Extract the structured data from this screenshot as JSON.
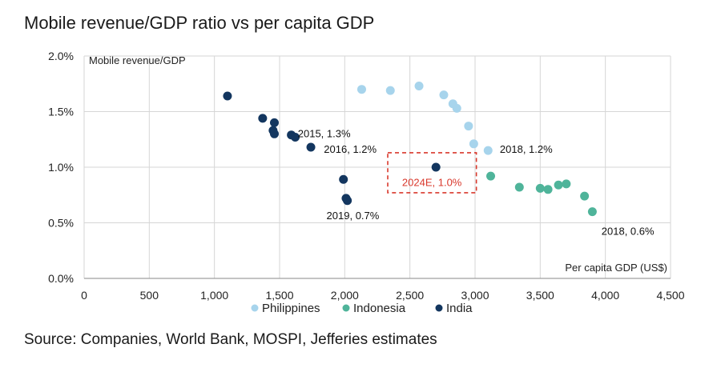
{
  "title": "Mobile revenue/GDP ratio vs per capita GDP",
  "source": "Source: Companies, World Bank, MOSPI, Jefferies estimates",
  "chart_data": {
    "type": "scatter",
    "title": "Mobile revenue/GDP ratio vs per capita GDP",
    "xlabel": "Per capita GDP (US$)",
    "ylabel": "Mobile revenue/GDP",
    "xlim": [
      0,
      4500
    ],
    "ylim": [
      0,
      2.0
    ],
    "x_ticks": [
      "0",
      "500",
      "1,000",
      "1,500",
      "2,000",
      "2,500",
      "3,000",
      "3,500",
      "4,000",
      "4,500"
    ],
    "y_ticks": [
      "0.0%",
      "0.5%",
      "1.0%",
      "1.5%",
      "2.0%"
    ],
    "grid": true,
    "legend_position": "bottom",
    "series": [
      {
        "name": "Philippines",
        "color": "#a7d4ec",
        "points": [
          {
            "x": 2130,
            "y": 1.7
          },
          {
            "x": 2350,
            "y": 1.69
          },
          {
            "x": 2570,
            "y": 1.73
          },
          {
            "x": 2760,
            "y": 1.65
          },
          {
            "x": 2830,
            "y": 1.57
          },
          {
            "x": 2860,
            "y": 1.53
          },
          {
            "x": 2950,
            "y": 1.37
          },
          {
            "x": 2990,
            "y": 1.21
          },
          {
            "x": 3100,
            "y": 1.15
          }
        ]
      },
      {
        "name": "Indonesia",
        "color": "#4fb49a",
        "points": [
          {
            "x": 3120,
            "y": 0.92
          },
          {
            "x": 3340,
            "y": 0.82
          },
          {
            "x": 3500,
            "y": 0.81
          },
          {
            "x": 3560,
            "y": 0.8
          },
          {
            "x": 3640,
            "y": 0.84
          },
          {
            "x": 3700,
            "y": 0.85
          },
          {
            "x": 3840,
            "y": 0.74
          },
          {
            "x": 3900,
            "y": 0.6
          }
        ]
      },
      {
        "name": "India",
        "color": "#13365f",
        "points": [
          {
            "x": 1100,
            "y": 1.64
          },
          {
            "x": 1370,
            "y": 1.44
          },
          {
            "x": 1460,
            "y": 1.4
          },
          {
            "x": 1450,
            "y": 1.33
          },
          {
            "x": 1460,
            "y": 1.3
          },
          {
            "x": 1590,
            "y": 1.29
          },
          {
            "x": 1620,
            "y": 1.27
          },
          {
            "x": 1740,
            "y": 1.18
          },
          {
            "x": 1990,
            "y": 0.89
          },
          {
            "x": 2010,
            "y": 0.72
          },
          {
            "x": 2020,
            "y": 0.7
          },
          {
            "x": 2700,
            "y": 1.0
          }
        ]
      }
    ],
    "annotations": [
      {
        "text": "2015, 1.3%",
        "x": 1640,
        "y": 1.3,
        "style": "normal"
      },
      {
        "text": "2016, 1.2%",
        "x": 1840,
        "y": 1.16,
        "style": "normal"
      },
      {
        "text": "2019, 0.7%",
        "x": 1860,
        "y": 0.56,
        "style": "normal"
      },
      {
        "text": "2018, 1.2%",
        "x": 3190,
        "y": 1.16,
        "style": "normal"
      },
      {
        "text": "2018, 0.6%",
        "x": 3970,
        "y": 0.42,
        "style": "normal"
      },
      {
        "text": "2024E, 1.0%",
        "x": 2440,
        "y": 0.86,
        "style": "highlight"
      }
    ],
    "highlight_box": {
      "x0": 2330,
      "x1": 3010,
      "y0": 0.77,
      "y1": 1.13,
      "color": "#d9382c"
    }
  }
}
